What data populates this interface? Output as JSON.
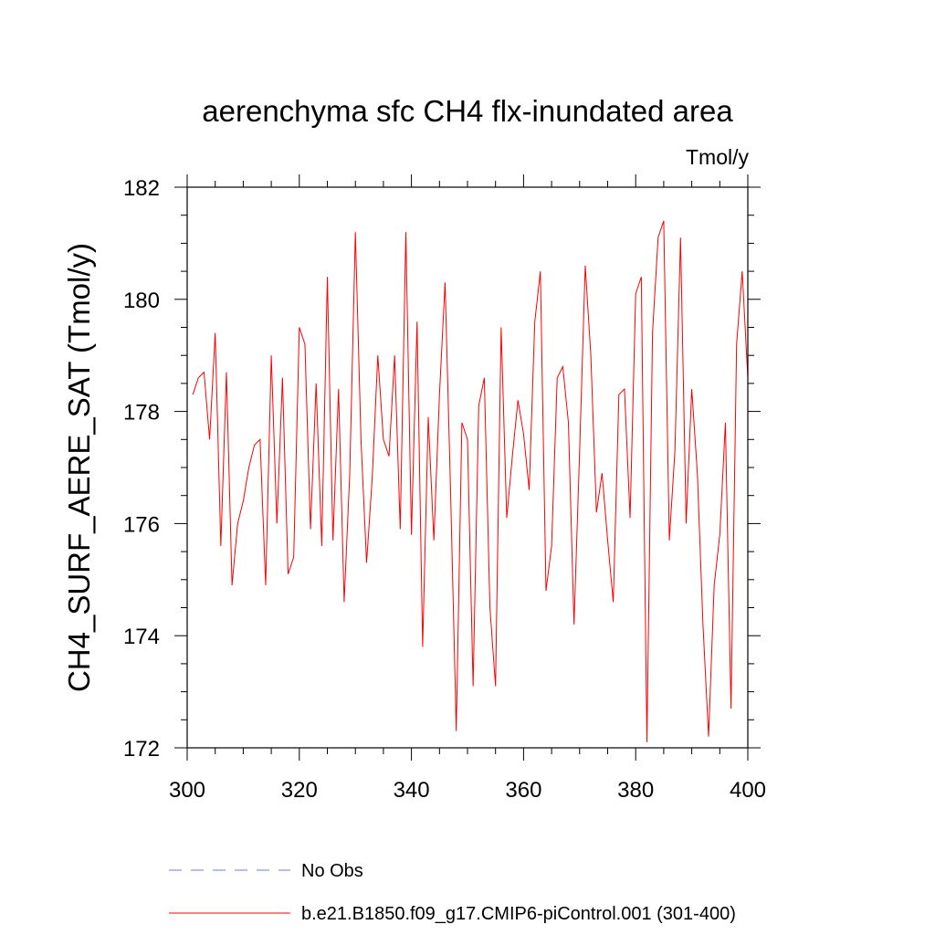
{
  "chart_data": {
    "type": "line",
    "title": "aerenchyma sfc CH4 flx-inundated area",
    "units": "Tmol/y",
    "xlabel": "",
    "ylabel": "CH4_SURF_AERE_SAT  (Tmol/y)",
    "xlim": [
      300,
      400
    ],
    "ylim": [
      172,
      182
    ],
    "xticks": [
      300,
      320,
      340,
      360,
      380,
      400
    ],
    "yticks": [
      172,
      174,
      176,
      178,
      180,
      182
    ],
    "x_minor_step": 5,
    "y_minor_step": 0.5,
    "series": [
      {
        "name": "b.e21.B1850.f09_g17.CMIP6-piControl.001 (301-400)",
        "color": "#ff0000",
        "x": [
          301,
          302,
          303,
          304,
          305,
          306,
          307,
          308,
          309,
          310,
          311,
          312,
          313,
          314,
          315,
          316,
          317,
          318,
          319,
          320,
          321,
          322,
          323,
          324,
          325,
          326,
          327,
          328,
          329,
          330,
          331,
          332,
          333,
          334,
          335,
          336,
          337,
          338,
          339,
          340,
          341,
          342,
          343,
          344,
          345,
          346,
          347,
          348,
          349,
          350,
          351,
          352,
          353,
          354,
          355,
          356,
          357,
          358,
          359,
          360,
          361,
          362,
          363,
          364,
          365,
          366,
          367,
          368,
          369,
          370,
          371,
          372,
          373,
          374,
          375,
          376,
          377,
          378,
          379,
          380,
          381,
          382,
          383,
          384,
          385,
          386,
          387,
          388,
          389,
          390,
          391,
          392,
          393,
          394,
          395,
          396,
          397,
          398,
          399,
          400
        ],
        "values": [
          178.3,
          178.6,
          178.7,
          177.5,
          179.4,
          175.6,
          178.7,
          174.9,
          176.0,
          176.4,
          177.0,
          177.4,
          177.5,
          174.9,
          179.0,
          176.0,
          178.6,
          175.1,
          175.4,
          179.5,
          179.2,
          175.9,
          178.5,
          175.6,
          180.4,
          175.7,
          178.4,
          174.6,
          176.9,
          181.2,
          177.5,
          175.3,
          176.8,
          179.0,
          177.5,
          177.2,
          179.0,
          175.9,
          181.2,
          175.8,
          179.6,
          173.8,
          177.9,
          175.7,
          178.3,
          180.3,
          176.5,
          172.3,
          177.8,
          177.5,
          173.1,
          178.1,
          178.6,
          174.5,
          173.1,
          179.5,
          176.1,
          177.2,
          178.2,
          177.6,
          176.6,
          179.6,
          180.5,
          174.8,
          175.6,
          178.6,
          178.8,
          177.8,
          174.2,
          177.3,
          180.6,
          179.0,
          176.2,
          176.9,
          175.7,
          174.6,
          178.3,
          178.4,
          176.1,
          180.1,
          180.4,
          172.1,
          179.4,
          181.1,
          181.4,
          175.7,
          177.3,
          181.1,
          176.0,
          178.4,
          176.9,
          174.2,
          172.2,
          174.9,
          175.8,
          177.8,
          172.7,
          179.2,
          180.5,
          178.6
        ]
      }
    ],
    "legend": [
      {
        "label": "No Obs",
        "style": "dashed",
        "color": "#7a7ad8"
      },
      {
        "label": "b.e21.B1850.f09_g17.CMIP6-piControl.001 (301-400)",
        "style": "solid",
        "color": "#ff0000"
      }
    ]
  }
}
